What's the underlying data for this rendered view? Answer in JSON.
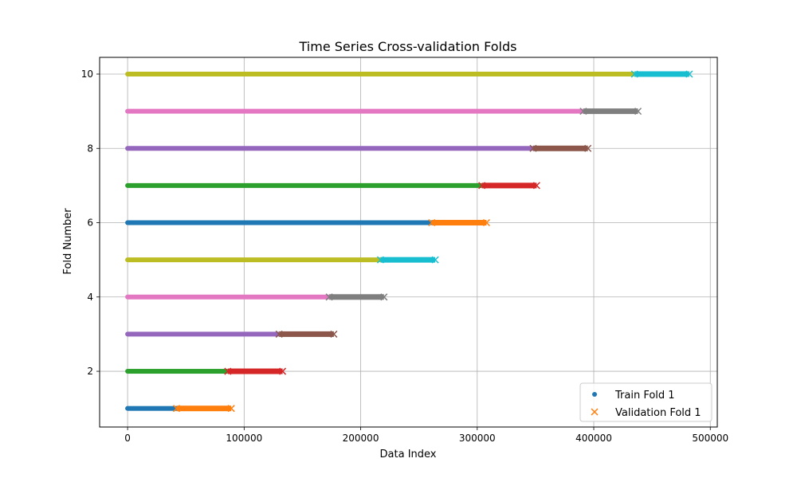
{
  "chart_data": {
    "type": "scatter",
    "title": "Time Series Cross-validation Folds",
    "xlabel": "Data Index",
    "ylabel": "Fold Number",
    "xlim": [
      -24000,
      506000
    ],
    "ylim": [
      0.5,
      10.45
    ],
    "xticks": [
      0,
      100000,
      200000,
      300000,
      400000,
      500000
    ],
    "xtick_labels": [
      "0",
      "100000",
      "200000",
      "300000",
      "400000",
      "500000"
    ],
    "yticks": [
      2,
      4,
      6,
      8,
      10
    ],
    "ytick_labels": [
      "2",
      "4",
      "6",
      "8",
      "10"
    ],
    "grid": true,
    "legend_position": "lower-right",
    "legend": [
      {
        "label": "Train Fold 1",
        "marker": "dot",
        "color": "#1f77b4"
      },
      {
        "label": "Validation Fold 1",
        "marker": "x",
        "color": "#ff7f0e"
      }
    ],
    "folds": [
      {
        "fold": 1,
        "train": [
          0,
          42000
        ],
        "validation": [
          42000,
          89000
        ],
        "train_color": "#1f77b4",
        "val_color": "#ff7f0e"
      },
      {
        "fold": 2,
        "train": [
          0,
          86000
        ],
        "validation": [
          86000,
          133000
        ],
        "train_color": "#2ca02c",
        "val_color": "#d62728"
      },
      {
        "fold": 3,
        "train": [
          0,
          130000
        ],
        "validation": [
          130000,
          177000
        ],
        "train_color": "#9467bd",
        "val_color": "#8c564b"
      },
      {
        "fold": 4,
        "train": [
          0,
          173000
        ],
        "validation": [
          173000,
          220000
        ],
        "train_color": "#e377c2",
        "val_color": "#7f7f7f"
      },
      {
        "fold": 5,
        "train": [
          0,
          217000
        ],
        "validation": [
          217000,
          264000
        ],
        "train_color": "#bcbd22",
        "val_color": "#17becf"
      },
      {
        "fold": 6,
        "train": [
          0,
          261000
        ],
        "validation": [
          261000,
          308000
        ],
        "train_color": "#1f77b4",
        "val_color": "#ff7f0e"
      },
      {
        "fold": 7,
        "train": [
          0,
          304000
        ],
        "validation": [
          304000,
          351000
        ],
        "train_color": "#2ca02c",
        "val_color": "#d62728"
      },
      {
        "fold": 8,
        "train": [
          0,
          348000
        ],
        "validation": [
          348000,
          395000
        ],
        "train_color": "#9467bd",
        "val_color": "#8c564b"
      },
      {
        "fold": 9,
        "train": [
          0,
          391000
        ],
        "validation": [
          391000,
          438000
        ],
        "train_color": "#e377c2",
        "val_color": "#7f7f7f"
      },
      {
        "fold": 10,
        "train": [
          0,
          435000
        ],
        "validation": [
          435000,
          482000
        ],
        "train_color": "#bcbd22",
        "val_color": "#17becf"
      }
    ]
  }
}
